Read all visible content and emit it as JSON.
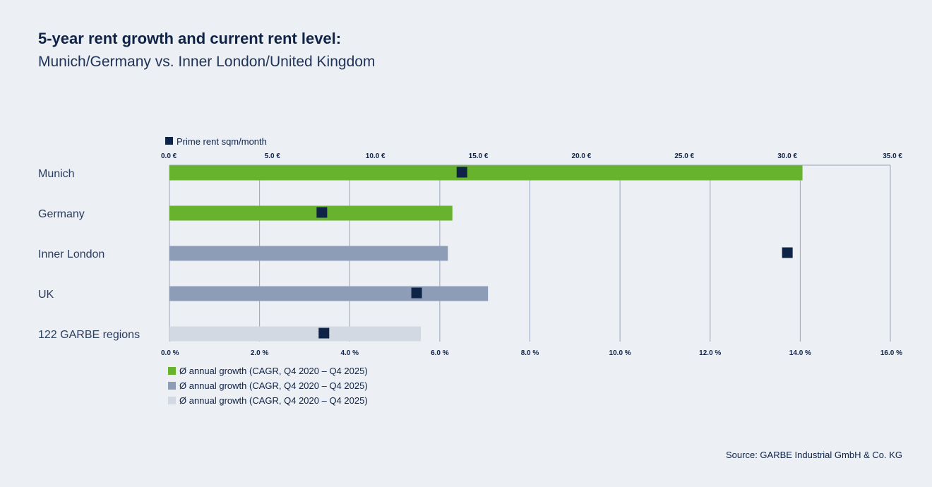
{
  "title": "5-year rent growth and current rent level:",
  "subtitle": "Munich/Germany vs. Inner London/United Kingdom",
  "source": "Source: GARBE Industrial GmbH & Co. KG",
  "colors": {
    "green": "#67b32e",
    "grey_blue": "#8d9db7",
    "light_grey": "#d3d9e2",
    "marker": "#0f2347",
    "grid": "#9aa3b8"
  },
  "chart_data": {
    "type": "bar",
    "orientation": "horizontal",
    "categories": [
      "Munich",
      "Germany",
      "Inner London",
      "UK",
      "122 GARBE regions"
    ],
    "series": [
      {
        "name": "Ø annual growth (CAGR, Q4 2020 – Q4 2025)",
        "axis": "bottom",
        "unit": "%",
        "values": [
          14.05,
          6.28,
          6.18,
          7.07,
          5.58
        ],
        "colors": [
          "green",
          "green",
          "grey_blue",
          "grey_blue",
          "light_grey"
        ]
      },
      {
        "name": "Prime rent sqm/month",
        "axis": "top",
        "unit": "€",
        "type": "marker",
        "values": [
          14.2,
          7.4,
          30.0,
          12.0,
          7.5
        ]
      }
    ],
    "top_axis": {
      "range": [
        0,
        35
      ],
      "ticks": [
        "0.0 €",
        "5.0 €",
        "10.0 €",
        "15.0 €",
        "20.0 €",
        "25.0 €",
        "30.0 €",
        "35.0 €"
      ]
    },
    "bottom_axis": {
      "range": [
        0,
        16
      ],
      "ticks": [
        "0.0 %",
        "2.0 %",
        "4.0 %",
        "6.0 %",
        "8.0 %",
        "10.0 %",
        "12.0 %",
        "14.0 %",
        "16.0 %"
      ]
    },
    "legend_top": {
      "label": "Prime rent sqm/month"
    },
    "legend_bottom": [
      {
        "label": "Ø annual growth (CAGR, Q4 2020 – Q4 2025)",
        "color": "green"
      },
      {
        "label": "Ø annual growth (CAGR, Q4 2020 – Q4 2025)",
        "color": "grey_blue"
      },
      {
        "label": "Ø annual growth (CAGR, Q4 2020 – Q4 2025)",
        "color": "light_grey"
      }
    ]
  }
}
